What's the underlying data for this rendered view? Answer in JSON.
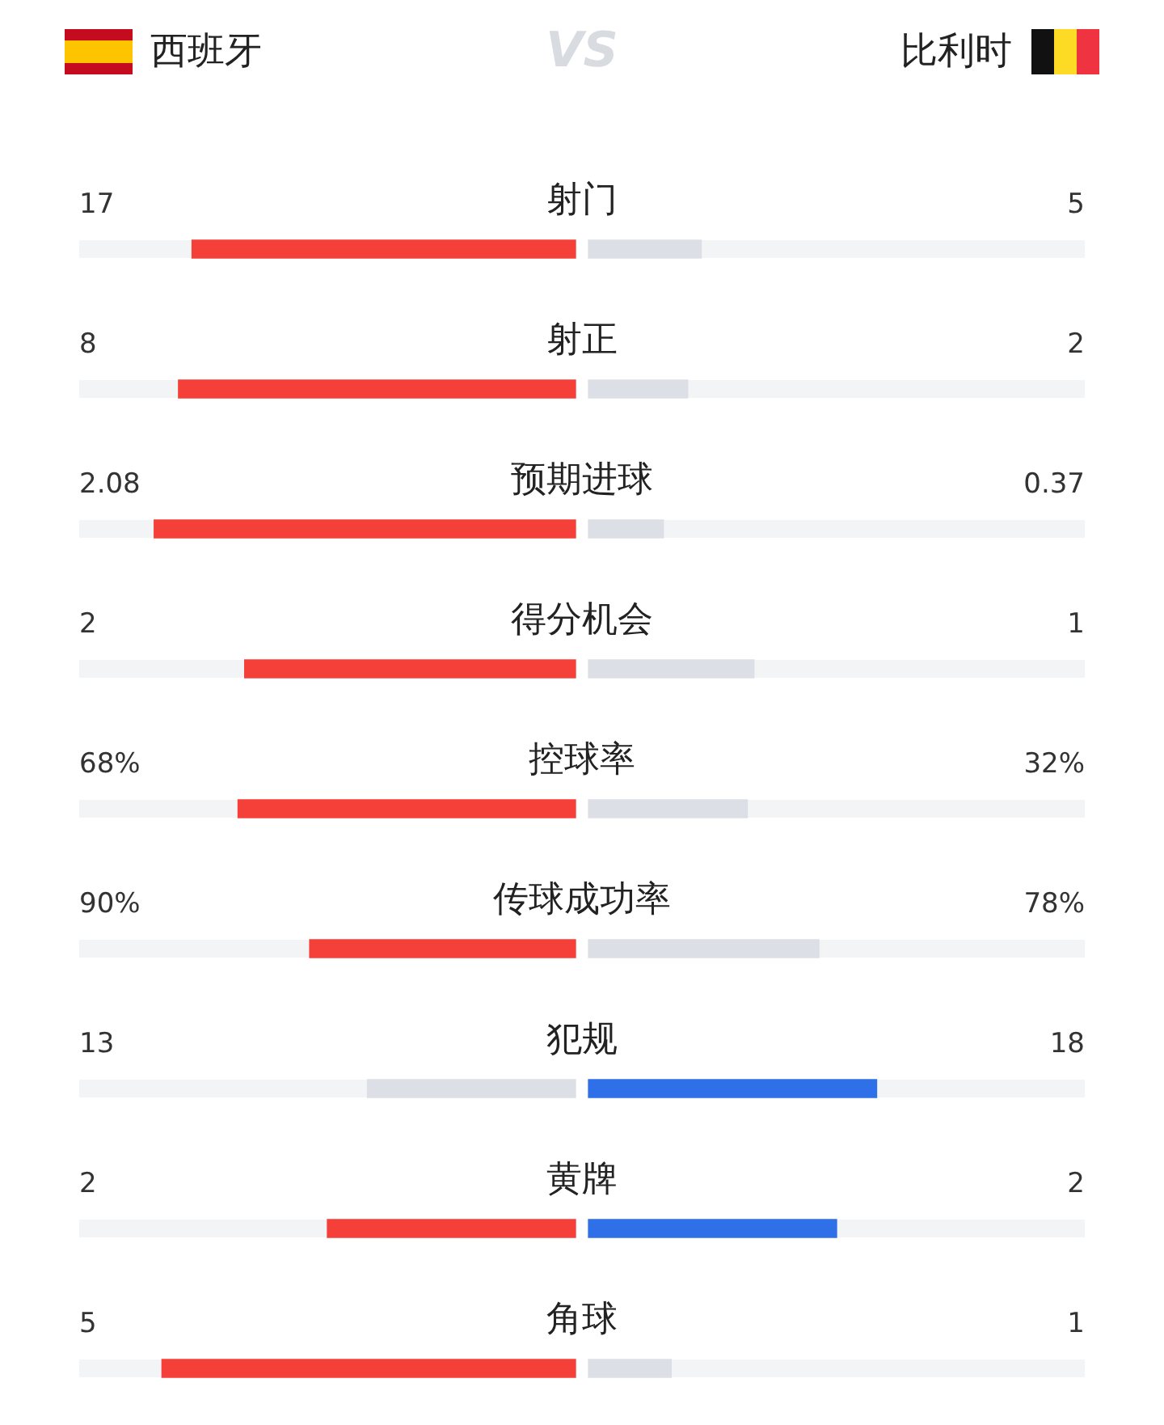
{
  "chart_data": {
    "type": "other",
    "annotations": [
      "VS"
    ],
    "categories": [
      "射门",
      "射正",
      "预期进球",
      "得分机会",
      "控球率",
      "传球成功率",
      "犯规",
      "黄牌",
      "角球"
    ],
    "series": [
      {
        "name": "西班牙",
        "values": [
          17,
          8,
          2.08,
          2,
          68,
          90,
          13,
          2,
          5
        ],
        "value_labels": [
          "17",
          "8",
          "2.08",
          "2",
          "68%",
          "90%",
          "13",
          "2",
          "5"
        ],
        "colors": [
          "#f5403a",
          "#f5403a",
          "#f5403a",
          "#f5403a",
          "#f5403a",
          "#f5403a",
          "#dcdfe5",
          "#f5403a",
          "#f5403a"
        ]
      },
      {
        "name": "比利时",
        "values": [
          5,
          2,
          0.37,
          1,
          32,
          78,
          18,
          2,
          1
        ],
        "value_labels": [
          "5",
          "2",
          "0.37",
          "1",
          "32%",
          "78%",
          "18",
          "2",
          "1"
        ],
        "colors": [
          "#dcdfe5",
          "#dcdfe5",
          "#dcdfe5",
          "#dcdfe5",
          "#dcdfe5",
          "#dcdfe5",
          "#2f6fe8",
          "#2f6fe8",
          "#dcdfe5"
        ]
      }
    ]
  }
}
